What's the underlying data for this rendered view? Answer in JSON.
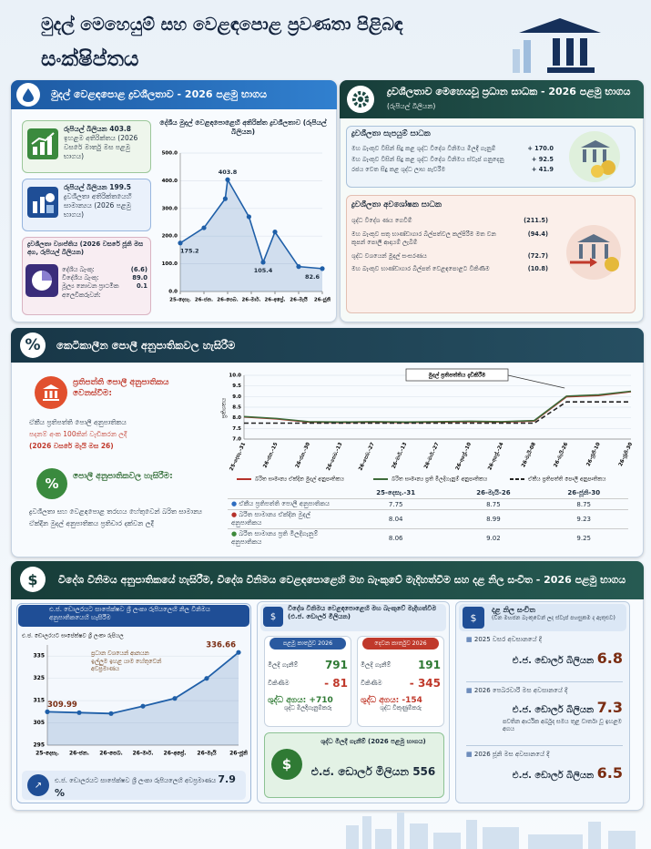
{
  "header": {
    "title": "මුදල් මෙහෙයුම් සහ වෙළඳපොළ ප්‍රවණතා පිළිබඳ",
    "subtitle": "සංක්ෂිප්තය"
  },
  "liquidity": {
    "heading": "මුදල් වෙළඳපොළ ද්‍රවශීලතාව - 2026 පළමු භාගය",
    "peak": {
      "amount": "රුපියල් බිලියන 403.8",
      "text": "ඉහළම අතිරික්තය (2026 වසරේ මාර්තු මස පළමු භාගය)"
    },
    "average": {
      "amount": "රුපියල් බිලියන 199.5",
      "text": "ද්‍රවශීලතා අතිරික්තයෙහි සාමාන්‍යය (2026 පළමු භාගය)"
    },
    "distribution": {
      "title": "ද්‍රවශීලතා ව්‍යාප්තිය (2026 වසරේ ජූනි මස අග, රුපියල් බිලියන)",
      "rows": [
        [
          "දේශීය බැංකු:",
          "(6.6)"
        ],
        [
          "විදේශීය බැංකු:",
          "89.0"
        ],
        [
          "මූල්‍ය නොවන ප්‍රාථමික අලෙවිකරුවන්:",
          "0.1"
        ]
      ]
    }
  },
  "factors": {
    "heading": "ද්‍රවශීලතාව මෙහෙයවූ ප්‍රධාන සාධක - 2026 පළමු භාගය",
    "unit": "(රුපියල් බිලියන)",
    "supply": {
      "title": "ද්‍රවශීලතා සැපයුම් සාධක",
      "rows": [
        [
          "මහ බැංකුව විසින් සිදු කළ ශුද්ධ විදේශ විනිමය මිලදී ගැනුම්",
          "+ 170.0"
        ],
        [
          "මහ බැංකුව විසින් සිදු කළ ශුද්ධ විදේශ විනිමය ස්වැප් ගනුදෙනු",
          "+ 92.5"
        ],
        [
          "රජය වෙත සිදු කළ ශුද්ධ ලාභ පැවරීම",
          "+ 41.9"
        ]
      ]
    },
    "absorb": {
      "title": "ද්‍රවශීලතා අවශෝෂක සාධක",
      "rows": [
        [
          "ශුද්ධ විදේශ ණය ගෙවීම්",
          "(211.5)"
        ],
        [
          "මහ බැංකුව සතු භාණ්ඩාගාර බිල්පත්වල කල්පිරීම මත වන කූපන් පොලී ආදායම් ලැබීම්",
          "(94.4)"
        ],
        [
          "ශුද්ධ වශයෙන් මුදල් සංසරණය",
          "(72.7)"
        ],
        [
          "මහ බැංකුව භාණ්ඩාගාර බිල්පත් වෙළඳපොළට විකිණීම",
          "(10.8)"
        ]
      ]
    }
  },
  "rates": {
    "heading": "කෙටිකාලීන පොලී අනුපාතිකවල හැසිරීම",
    "policy_title": "ප්‍රතිපත්ති පොලී අනුපාතිකය වෙනස්වීම:",
    "policy_text": "ඒකීය ප්‍රතිපත්ති පොලී අනුපාතිකය",
    "policy_change": "පදනම් අංක 100කින් වැඩිකරන ලදී",
    "policy_date": "(2026 වසරේ මැයි මස 26)",
    "behaviour_title": "පොලී අනුපාතිකවල හැසිරීම:",
    "behaviour_text": "ද්‍රවශීලතා සහ වෙළඳපොළ තරඟය හේතුවෙන් බරිත සාමාන්‍ය ඒක්දින මුදල් අනුපාතිකය ප්‍රතිචාර දක්වන ලදී",
    "table": {
      "header": [
        "25-දෙසැ.-31",
        "26-මැයි-26",
        "26-ජූනි-30"
      ],
      "rows": [
        [
          "ඒකීය ප්‍රතිපත්ති පොලී අනුපාතිකය",
          "7.75",
          "8.75",
          "8.75"
        ],
        [
          "බරිත සාමාන්‍ය ඒක්දින මුදල් අනුපාතිකය",
          "8.04",
          "8.99",
          "9.23"
        ],
        [
          "බරිත සාමාන්‍ය ප්‍රති මිලදීගැනුම් අනුපාතිකය",
          "8.06",
          "9.02",
          "9.25"
        ]
      ]
    }
  },
  "fx": {
    "heading": "විදේශ විනිමය අනුපාතිකයේ හැසිරීම, විදේශ විනිමය වෙළඳපොළෙහි මහ බැංකුවේ මැදිහත්වීම සහ දළ නිල සංචිත - 2026 පළමු භාගය",
    "depreciation_label": "එ.ජ. ඩොලරයට සාපේක්ෂව ශ්‍රී ලංකා රුපියලෙහි අවප්‍රමාණය",
    "depreciation": "7.9 %",
    "intervention": {
      "title": "විදේශ විනිමය වෙළඳපොළෙහි මහ බැංකුවේ මැදිහත්වීම (එ.ජ. ඩොලර් මිලියන)",
      "quarters": [
        {
          "label": "පළමු කාර්තුව 2026",
          "purchases_label": "මිලදී ගැනීම්",
          "purchases": "791",
          "sales_label": "විකිණීම",
          "sales": "- 81",
          "net": "ශුද්ධ අගය: +710",
          "role": "ශුද්ධ මිලදීගැනුම්කරු"
        },
        {
          "label": "දෙවන කාර්තුව 2026",
          "purchases_label": "මිලදී ගැනීම්",
          "purchases": "191",
          "sales_label": "විකිණීම",
          "sales": "- 345",
          "net": "ශුද්ධ අගය: -154",
          "role": "ශුද්ධ විකුණුම්කරු"
        }
      ],
      "total_label": "ශුද්ධ මිලදී ගැනීම් (2026 පළමු භාගය)",
      "total": "එ.ජ. ඩොලර් මිලියන 556"
    },
    "reserves": {
      "title": "දළ නිල සංචිත",
      "subtitle": "(චීන මහජන බැංකුවෙන් ලද ස්වැප් පහසුකම ද ඇතුළුව)",
      "items": [
        {
          "label": "2025 වසර අවසානයේ දී",
          "unit": "එ.ජ. ඩොලර් බිලියන",
          "value": "6.8"
        },
        {
          "label": "2026 පෙබරවාරි මස අවසානයේ දී",
          "unit": "එ.ජ. ඩොලර් බිලියන",
          "value": "7.3",
          "note": "පවතින ආර්ථික අර්බුද සමය තුළ වාර්තා වූ ඉහළම අගය"
        },
        {
          "label": "2026 ජූනි මස අවසානයේ දී",
          "unit": "එ.ජ. ඩොලර් බිලියන",
          "value": "6.5"
        }
      ]
    }
  },
  "chart_data": [
    {
      "type": "line",
      "title": "දේශීය මුදල් වෙළඳපොළෙහි අතිරික්ත ද්‍රවශීලතාව (රුපියල් බිලියන)",
      "x": [
        0,
        1,
        1.9,
        2,
        2.9,
        3.5,
        4,
        5,
        6
      ],
      "values": [
        175.2,
        230,
        335,
        403.8,
        270,
        105.4,
        215,
        90,
        82.6
      ],
      "value_labels": [
        "175.2",
        null,
        null,
        "403.8",
        null,
        "105.4",
        null,
        null,
        "82.6"
      ],
      "color": "#1f5fa8",
      "area": true,
      "markers": true,
      "grid": true,
      "xlim": [
        0,
        6
      ],
      "xticks": [
        {
          "value": 0,
          "label": "25-දෙසැ."
        },
        {
          "value": 1,
          "label": "26-ජන."
        },
        {
          "value": 2,
          "label": "26-පෙබ."
        },
        {
          "value": 3,
          "label": "26-මාර්."
        },
        {
          "value": 4,
          "label": "26-අප්‍රේ."
        },
        {
          "value": 5,
          "label": "26-මැයි"
        },
        {
          "value": 6,
          "label": "26-ජූනි"
        }
      ],
      "ylim": [
        0,
        500
      ],
      "yticks": [
        {
          "value": 0,
          "label": "0.0"
        },
        {
          "value": 100,
          "label": "100.0"
        },
        {
          "value": 200,
          "label": "200.0"
        },
        {
          "value": 300,
          "label": "300.0"
        },
        {
          "value": 400,
          "label": "400.0"
        },
        {
          "value": 500,
          "label": "500.0"
        }
      ]
    },
    {
      "type": "line",
      "ylabel": "ප්‍රතිශතය",
      "annotation": "මුදල් ප්‍රතිපත්තිය දැඩිකිරීම",
      "categories": [
        "25-දෙසැ.-31",
        "26-ජන.-15",
        "26-ජන.-30",
        "26-පෙබ.-13",
        "26-පෙබ.-27",
        "26-මාර්.-13",
        "26-මාර්.-27",
        "26-අප්‍රේ.-10",
        "26-අප්‍රේ.-24",
        "26-මැයි-08",
        "26-මැයි-26",
        "26-ජූනි-10",
        "26-ජූනි-30"
      ],
      "series": [
        {
          "name": "බරිත සාමාන්‍ය ඒක්දින මුදල් අනුපාතිකය",
          "color": "#b5312a",
          "values": [
            8.04,
            7.95,
            7.8,
            7.78,
            7.8,
            7.78,
            7.8,
            7.82,
            7.8,
            7.85,
            8.99,
            9.05,
            9.23
          ]
        },
        {
          "name": "බරිත සාමාන්‍ය ප්‍රති මිලදීගැනුම් අනුපාතිකය",
          "color": "#3d6b3a",
          "values": [
            8.06,
            7.97,
            7.82,
            7.8,
            7.82,
            7.8,
            7.82,
            7.84,
            7.82,
            7.87,
            9.02,
            9.08,
            9.25
          ]
        },
        {
          "name": "ඒකීය ප්‍රතිපත්ති පොලී අනුපාතිකය",
          "color": "#222222",
          "dashed": true,
          "values": [
            7.75,
            7.75,
            7.75,
            7.75,
            7.75,
            7.75,
            7.75,
            7.75,
            7.75,
            7.75,
            8.75,
            8.75,
            8.75
          ]
        }
      ],
      "grid": true,
      "ylim": [
        7,
        10
      ],
      "yticks": [
        {
          "value": 7,
          "label": "7.0"
        },
        {
          "value": 7.5,
          "label": "7.5"
        },
        {
          "value": 8,
          "label": "8.0"
        },
        {
          "value": 8.5,
          "label": "8.5"
        },
        {
          "value": 9,
          "label": "9.0"
        },
        {
          "value": 9.5,
          "label": "9.5"
        },
        {
          "value": 10,
          "label": "10.0"
        }
      ]
    },
    {
      "type": "line",
      "title": "එ.ජ. ඩොලරයට සාපේක්ෂව ශ්‍රී ලංකා රුපියලෙහි නිල විනිමය අනුපාතිකයෙහි හැසිරීම",
      "ylabel": "එ.ජ. ඩොලරයට සාපේක්ෂව ශ්‍රී ලංකා රුපියල",
      "annotation": "ප්‍රධාන වශයෙන් ආනයන ඉල්ලුම ඉහළ යාම හේතුවෙන් අවප්‍රමාණය",
      "categories": [
        "25-දෙසැ.",
        "26-ජන.",
        "26-පෙබ.",
        "26-මාර්.",
        "26-අප්‍රේ.",
        "26-මැයි",
        "26-ජූනි"
      ],
      "values": [
        309.99,
        309.6,
        309.2,
        312.5,
        316,
        325,
        336.66
      ],
      "value_labels": [
        "309.99",
        null,
        null,
        null,
        null,
        null,
        "336.66"
      ],
      "color": "#1f5fa8",
      "area": true,
      "markers": true,
      "grid": true,
      "ylim": [
        295,
        340
      ],
      "yticks": [
        295,
        305,
        315,
        325,
        335
      ]
    }
  ]
}
